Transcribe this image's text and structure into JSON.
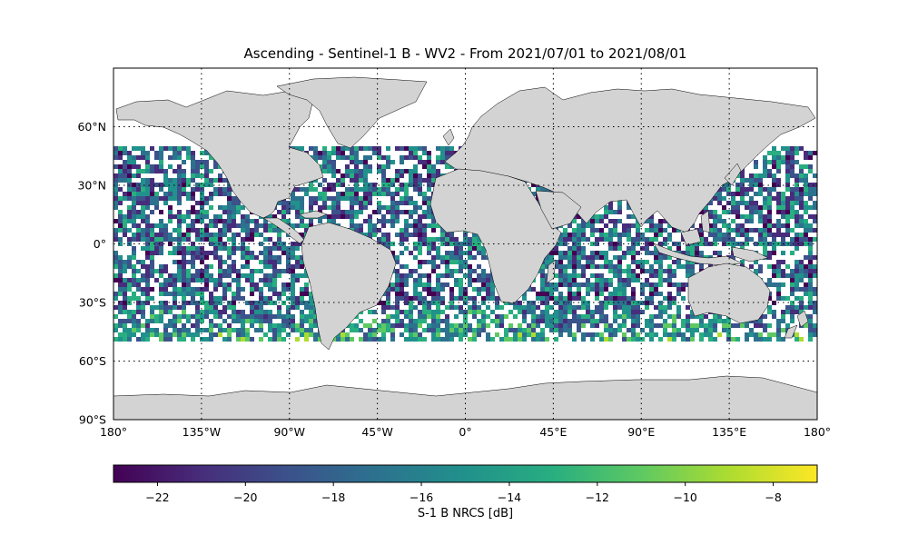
{
  "title": "Ascending - Sentinel-1 B - WV2 - From 2021/07/01 to 2021/08/01",
  "map": {
    "projection": "PlateCarree",
    "lon_range": [
      -180,
      180
    ],
    "lat_range": [
      -90,
      90
    ],
    "land_color": "#d3d3d3",
    "coastline_color": "#000000",
    "gridlines": "dotted",
    "lon_ticks": [
      {
        "value": -180,
        "label": "180°"
      },
      {
        "value": -135,
        "label": "135°W"
      },
      {
        "value": -90,
        "label": "90°W"
      },
      {
        "value": -45,
        "label": "45°W"
      },
      {
        "value": 0,
        "label": "0°"
      },
      {
        "value": 45,
        "label": "45°E"
      },
      {
        "value": 90,
        "label": "90°E"
      },
      {
        "value": 135,
        "label": "135°E"
      },
      {
        "value": 180,
        "label": "180°"
      }
    ],
    "lat_ticks": [
      {
        "value": 60,
        "label": "60°N"
      },
      {
        "value": 30,
        "label": "30°N"
      },
      {
        "value": 0,
        "label": "0°"
      },
      {
        "value": -30,
        "label": "30°S"
      },
      {
        "value": -60,
        "label": "60°S"
      },
      {
        "value": -90,
        "label": "90°S"
      }
    ],
    "data_lat_extent": [
      -50,
      50
    ]
  },
  "colorbar": {
    "label": "S-1 B NRCS [dB]",
    "colormap": "viridis",
    "range": [
      -23,
      -7
    ],
    "ticks": [
      {
        "value": -22,
        "label": "−22"
      },
      {
        "value": -20,
        "label": "−20"
      },
      {
        "value": -18,
        "label": "−18"
      },
      {
        "value": -16,
        "label": "−16"
      },
      {
        "value": -14,
        "label": "−14"
      },
      {
        "value": -12,
        "label": "−12"
      },
      {
        "value": -10,
        "label": "−10"
      },
      {
        "value": -8,
        "label": "−8"
      }
    ]
  }
}
